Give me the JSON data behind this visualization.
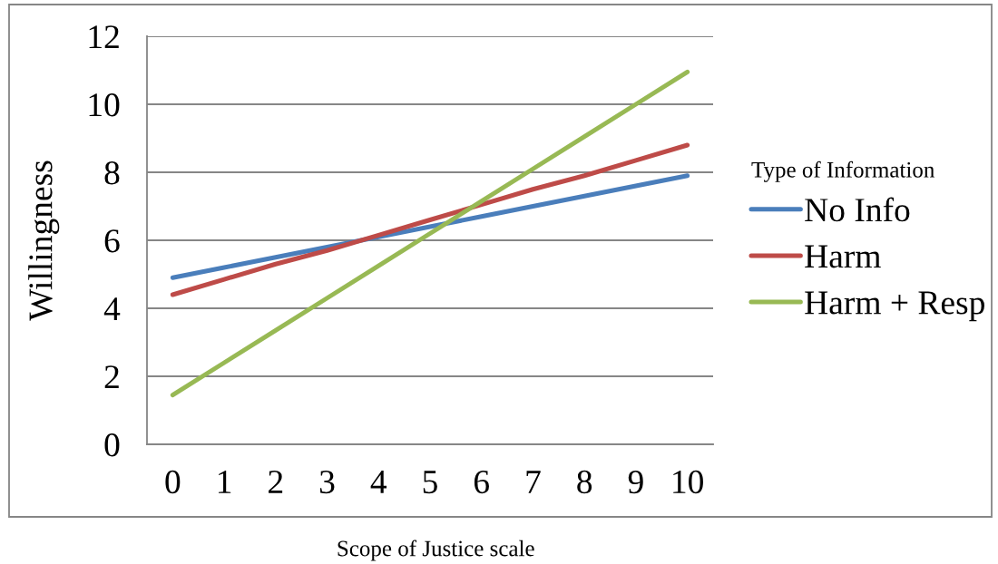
{
  "chart_data": {
    "type": "line",
    "xlabel": "Scope of Justice scale",
    "ylabel": "Willingness",
    "legend_title": "Type of Information",
    "categories": [
      "0",
      "1",
      "2",
      "3",
      "4",
      "5",
      "6",
      "7",
      "8",
      "9",
      "10"
    ],
    "series": [
      {
        "name": "No Info",
        "color": "#4a7ebb",
        "values": [
          4.9,
          5.2,
          5.5,
          5.8,
          6.1,
          6.4,
          6.7,
          7.0,
          7.3,
          7.6,
          7.9
        ]
      },
      {
        "name": "Harm",
        "color": "#be4b48",
        "values": [
          4.4,
          4.85,
          5.3,
          5.7,
          6.15,
          6.6,
          7.05,
          7.5,
          7.9,
          8.35,
          8.8
        ]
      },
      {
        "name": "Harm + Resp",
        "color": "#98b954",
        "values": [
          1.45,
          2.4,
          3.35,
          4.3,
          5.25,
          6.2,
          7.15,
          8.1,
          9.05,
          10.0,
          10.95
        ]
      }
    ],
    "ylim": [
      0,
      12
    ],
    "yticks": [
      0,
      2,
      4,
      6,
      8,
      10,
      12
    ],
    "grid": "y",
    "legend": "right",
    "line_style": "solid"
  }
}
